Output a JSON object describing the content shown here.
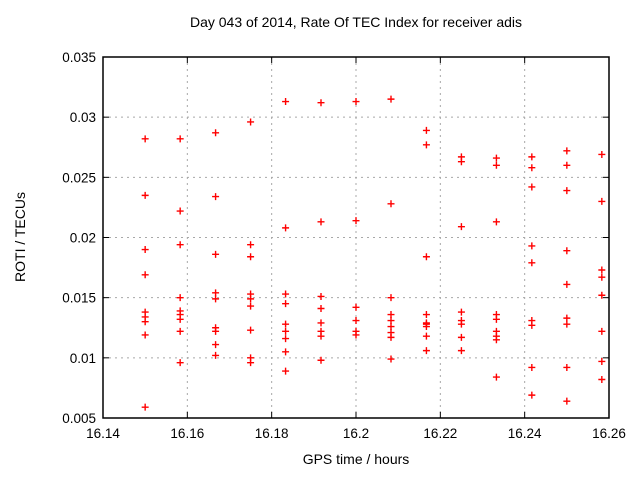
{
  "window": {
    "background": "#ffffff"
  },
  "chart_data": {
    "type": "scatter",
    "title": "Day 043 of 2014, Rate Of TEC Index for receiver adis",
    "xlabel": "GPS time / hours",
    "ylabel": "ROTI / TECUs",
    "xlim": [
      16.14,
      16.26
    ],
    "ylim": [
      0.005,
      0.035
    ],
    "xticks": [
      16.14,
      16.16,
      16.18,
      16.2,
      16.22,
      16.24,
      16.26
    ],
    "xtick_labels": [
      "16.14",
      "16.16",
      "16.18",
      "16.2",
      "16.22",
      "16.24",
      "16.26"
    ],
    "yticks": [
      0.005,
      0.01,
      0.015,
      0.02,
      0.025,
      0.03,
      0.035
    ],
    "ytick_labels": [
      "0.005",
      "0.01",
      "0.015",
      "0.02",
      "0.025",
      "0.03",
      "0.035"
    ],
    "grid": true,
    "legend": "none",
    "marker": {
      "shape": "plus",
      "color": "#ff0000",
      "size": 7
    },
    "frame_color": "#000000",
    "grid_color": "#a8a8a8",
    "series": [
      {
        "name": "ROTI",
        "points": [
          [
            16.15,
            0.0282
          ],
          [
            16.15,
            0.0235
          ],
          [
            16.15,
            0.019
          ],
          [
            16.15,
            0.0169
          ],
          [
            16.15,
            0.0138
          ],
          [
            16.15,
            0.0134
          ],
          [
            16.15,
            0.013
          ],
          [
            16.15,
            0.0119
          ],
          [
            16.15,
            0.0059
          ],
          [
            16.1583,
            0.0282
          ],
          [
            16.1583,
            0.0222
          ],
          [
            16.1583,
            0.0194
          ],
          [
            16.1583,
            0.015
          ],
          [
            16.1583,
            0.0139
          ],
          [
            16.1583,
            0.0136
          ],
          [
            16.1583,
            0.0132
          ],
          [
            16.1583,
            0.0122
          ],
          [
            16.1583,
            0.0096
          ],
          [
            16.1667,
            0.0287
          ],
          [
            16.1667,
            0.0234
          ],
          [
            16.1667,
            0.0186
          ],
          [
            16.1667,
            0.0154
          ],
          [
            16.1667,
            0.0149
          ],
          [
            16.1667,
            0.0125
          ],
          [
            16.1667,
            0.0122
          ],
          [
            16.1667,
            0.0111
          ],
          [
            16.1667,
            0.0102
          ],
          [
            16.175,
            0.0296
          ],
          [
            16.175,
            0.0194
          ],
          [
            16.175,
            0.0184
          ],
          [
            16.175,
            0.0153
          ],
          [
            16.175,
            0.0149
          ],
          [
            16.175,
            0.0143
          ],
          [
            16.175,
            0.0123
          ],
          [
            16.175,
            0.01
          ],
          [
            16.175,
            0.0096
          ],
          [
            16.1833,
            0.0313
          ],
          [
            16.1833,
            0.0208
          ],
          [
            16.1833,
            0.0153
          ],
          [
            16.1833,
            0.0145
          ],
          [
            16.1833,
            0.0128
          ],
          [
            16.1833,
            0.0122
          ],
          [
            16.1833,
            0.0116
          ],
          [
            16.1833,
            0.0105
          ],
          [
            16.1833,
            0.0089
          ],
          [
            16.1917,
            0.0312
          ],
          [
            16.1917,
            0.0213
          ],
          [
            16.1917,
            0.0151
          ],
          [
            16.1917,
            0.0141
          ],
          [
            16.1917,
            0.0129
          ],
          [
            16.1917,
            0.0122
          ],
          [
            16.1917,
            0.0118
          ],
          [
            16.1917,
            0.0098
          ],
          [
            16.2,
            0.0313
          ],
          [
            16.2,
            0.0214
          ],
          [
            16.2,
            0.0142
          ],
          [
            16.2,
            0.0131
          ],
          [
            16.2,
            0.0122
          ],
          [
            16.2,
            0.0119
          ],
          [
            16.2083,
            0.0315
          ],
          [
            16.2083,
            0.0228
          ],
          [
            16.2083,
            0.015
          ],
          [
            16.2083,
            0.0136
          ],
          [
            16.2083,
            0.0131
          ],
          [
            16.2083,
            0.0126
          ],
          [
            16.2083,
            0.0121
          ],
          [
            16.2083,
            0.0117
          ],
          [
            16.2083,
            0.0099
          ],
          [
            16.2167,
            0.0289
          ],
          [
            16.2167,
            0.0277
          ],
          [
            16.2167,
            0.0184
          ],
          [
            16.2167,
            0.0136
          ],
          [
            16.2167,
            0.0129
          ],
          [
            16.2167,
            0.0128
          ],
          [
            16.2167,
            0.0126
          ],
          [
            16.2167,
            0.0118
          ],
          [
            16.2167,
            0.0106
          ],
          [
            16.225,
            0.0267
          ],
          [
            16.225,
            0.0263
          ],
          [
            16.225,
            0.0209
          ],
          [
            16.225,
            0.0138
          ],
          [
            16.225,
            0.0131
          ],
          [
            16.225,
            0.0128
          ],
          [
            16.225,
            0.0117
          ],
          [
            16.225,
            0.0106
          ],
          [
            16.2333,
            0.0266
          ],
          [
            16.2333,
            0.026
          ],
          [
            16.2333,
            0.0213
          ],
          [
            16.2333,
            0.0136
          ],
          [
            16.2333,
            0.0132
          ],
          [
            16.2333,
            0.0122
          ],
          [
            16.2333,
            0.0118
          ],
          [
            16.2333,
            0.0115
          ],
          [
            16.2333,
            0.0084
          ],
          [
            16.2417,
            0.0267
          ],
          [
            16.2417,
            0.0258
          ],
          [
            16.2417,
            0.0242
          ],
          [
            16.2417,
            0.0193
          ],
          [
            16.2417,
            0.0179
          ],
          [
            16.2417,
            0.0131
          ],
          [
            16.2417,
            0.0127
          ],
          [
            16.2417,
            0.0092
          ],
          [
            16.2417,
            0.0069
          ],
          [
            16.25,
            0.0272
          ],
          [
            16.25,
            0.026
          ],
          [
            16.25,
            0.0239
          ],
          [
            16.25,
            0.0189
          ],
          [
            16.25,
            0.0161
          ],
          [
            16.25,
            0.0133
          ],
          [
            16.25,
            0.0128
          ],
          [
            16.25,
            0.0092
          ],
          [
            16.25,
            0.0064
          ],
          [
            16.2583,
            0.0269
          ],
          [
            16.2583,
            0.023
          ],
          [
            16.2583,
            0.0173
          ],
          [
            16.2583,
            0.0167
          ],
          [
            16.2583,
            0.0152
          ],
          [
            16.2583,
            0.0122
          ],
          [
            16.2583,
            0.0097
          ],
          [
            16.2583,
            0.0082
          ]
        ]
      }
    ]
  }
}
